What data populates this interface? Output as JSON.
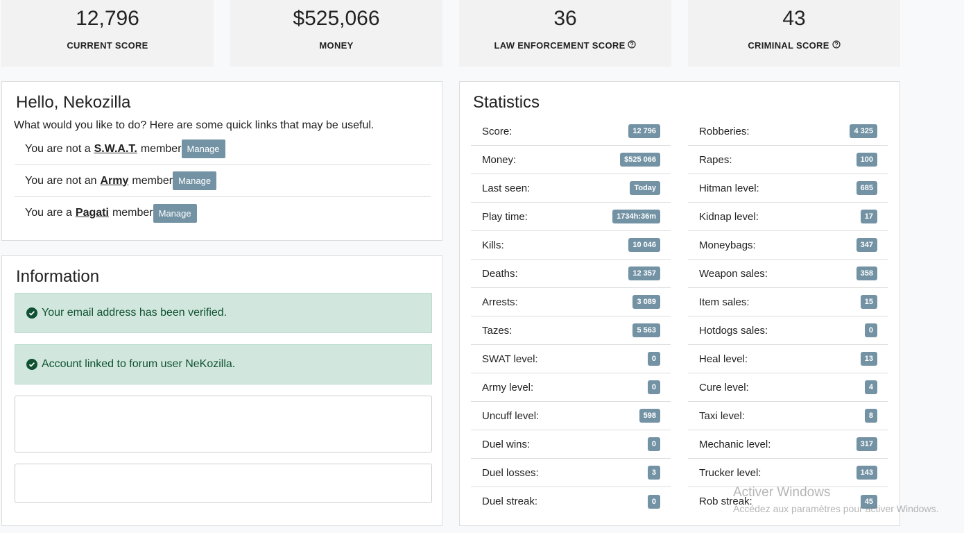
{
  "score_cards": [
    {
      "value": "12,796",
      "label": "CURRENT SCORE"
    },
    {
      "value": "$525,066",
      "label": "MONEY"
    },
    {
      "value": "36",
      "label": "LAW ENFORCEMENT SCORE"
    },
    {
      "value": "43",
      "label": "CRIMINAL SCORE"
    }
  ],
  "welcome": {
    "title": "Hello, Nekozilla",
    "subtitle": "What would you like to do? Here are some quick links that may be useful.",
    "memberships": [
      {
        "prefix": "You are not a",
        "group": "S.W.A.T.",
        "suffix": "member",
        "button": "Manage"
      },
      {
        "prefix": "You are not an",
        "group": "Army",
        "suffix": "member",
        "button": "Manage"
      },
      {
        "prefix": "You are a",
        "group": "Pagati",
        "suffix": "member",
        "button": "Manage"
      }
    ]
  },
  "information": {
    "title": "Information",
    "alerts": [
      "Your email address has been verified.",
      "Account linked to forum user NeKozilla."
    ]
  },
  "statistics": {
    "title": "Statistics",
    "left": [
      {
        "label": "Score:",
        "value": "12 796"
      },
      {
        "label": "Money:",
        "value": "$525 066"
      },
      {
        "label": "Last seen:",
        "value": "Today"
      },
      {
        "label": "Play time:",
        "value": "1734h:36m"
      },
      {
        "label": "Kills:",
        "value": "10 046"
      },
      {
        "label": "Deaths:",
        "value": "12 357"
      },
      {
        "label": "Arrests:",
        "value": "3 089"
      },
      {
        "label": "Tazes:",
        "value": "5 563"
      },
      {
        "label": "SWAT level:",
        "value": "0"
      },
      {
        "label": "Army level:",
        "value": "0"
      },
      {
        "label": "Uncuff level:",
        "value": "598"
      },
      {
        "label": "Duel wins:",
        "value": "0"
      },
      {
        "label": "Duel losses:",
        "value": "3"
      },
      {
        "label": "Duel streak:",
        "value": "0"
      }
    ],
    "right": [
      {
        "label": "Robberies:",
        "value": "4 325"
      },
      {
        "label": "Rapes:",
        "value": "100"
      },
      {
        "label": "Hitman level:",
        "value": "685"
      },
      {
        "label": "Kidnap level:",
        "value": "17"
      },
      {
        "label": "Moneybags:",
        "value": "347"
      },
      {
        "label": "Weapon sales:",
        "value": "358"
      },
      {
        "label": "Item sales:",
        "value": "15"
      },
      {
        "label": "Hotdogs sales:",
        "value": "0"
      },
      {
        "label": "Heal level:",
        "value": "13"
      },
      {
        "label": "Cure level:",
        "value": "4"
      },
      {
        "label": "Taxi level:",
        "value": "8"
      },
      {
        "label": "Mechanic level:",
        "value": "317"
      },
      {
        "label": "Trucker level:",
        "value": "143"
      },
      {
        "label": "Rob streak:",
        "value": "45"
      }
    ]
  },
  "watermark": {
    "title": "Activer Windows",
    "text": "Accédez aux paramètres pour activer Windows."
  }
}
